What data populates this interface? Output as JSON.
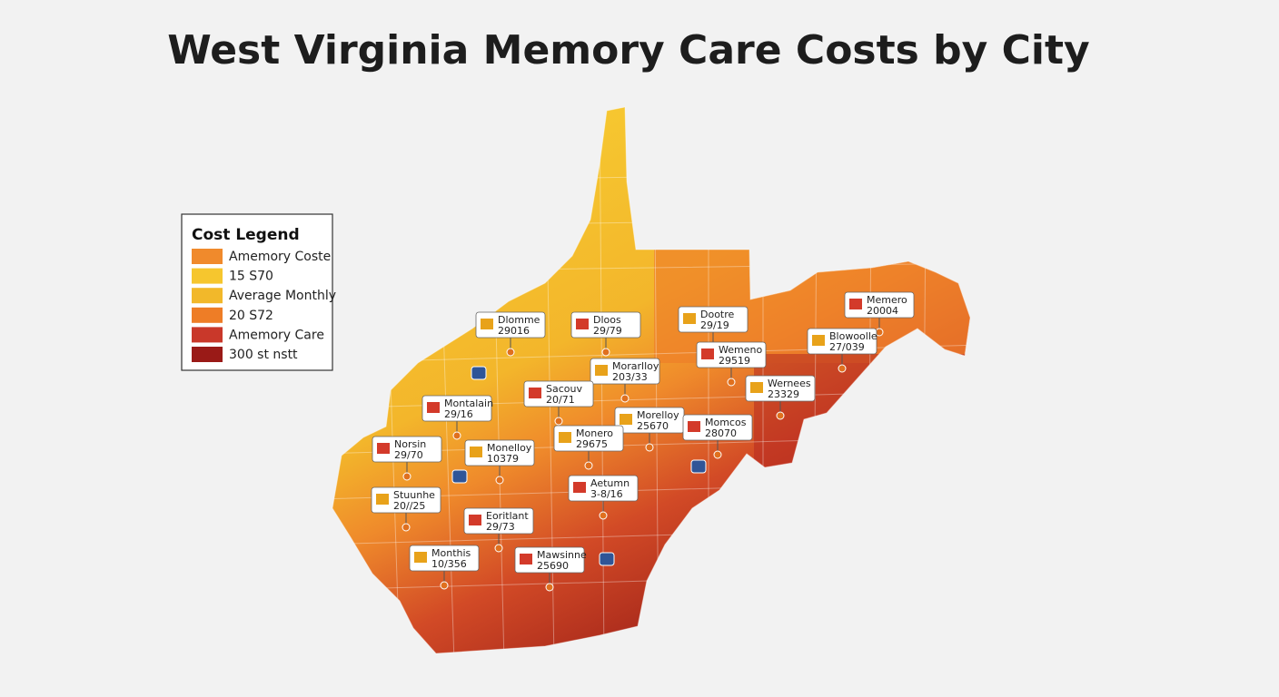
{
  "title": "West Virginia Memory Care Costs by City",
  "legend": {
    "title": "Cost Legend",
    "items": [
      {
        "label": "Amemory Coste",
        "color": "#f08a2c"
      },
      {
        "label": "15 S70",
        "color": "#f6c62e"
      },
      {
        "label": "Average Monthly",
        "color": "#f2b82a"
      },
      {
        "label": "20 S72",
        "color": "#ee7d26"
      },
      {
        "label": "Amemory Care",
        "color": "#c9382a"
      },
      {
        "label": "300 st nstt",
        "color": "#9a1a17"
      }
    ]
  },
  "callouts": [
    {
      "name": "Dlomme",
      "cost": "29016"
    },
    {
      "name": "Dloos",
      "cost": "29/79"
    },
    {
      "name": "Dootre",
      "cost": "29/19"
    },
    {
      "name": "Memero",
      "cost": "20004"
    },
    {
      "name": "Blowoolle",
      "cost": "27/039"
    },
    {
      "name": "Wemeno",
      "cost": "29519"
    },
    {
      "name": "Morarlloy",
      "cost": "203/33"
    },
    {
      "name": "Sacouv",
      "cost": "20/71"
    },
    {
      "name": "Wernees",
      "cost": "23329"
    },
    {
      "name": "Montalain",
      "cost": "29/16"
    },
    {
      "name": "Morelloy",
      "cost": "25670"
    },
    {
      "name": "Momcos",
      "cost": "28070"
    },
    {
      "name": "Monero",
      "cost": "29675"
    },
    {
      "name": "Norsin",
      "cost": "29/70"
    },
    {
      "name": "Monelloy",
      "cost": "10379"
    },
    {
      "name": "Aetumn",
      "cost": "3-8/16"
    },
    {
      "name": "Stuunhe",
      "cost": "20//25"
    },
    {
      "name": "Eoritlant",
      "cost": "29/73"
    },
    {
      "name": "Monthis",
      "cost": "10/356"
    },
    {
      "name": "Mawsinne",
      "cost": "25690"
    }
  ]
}
